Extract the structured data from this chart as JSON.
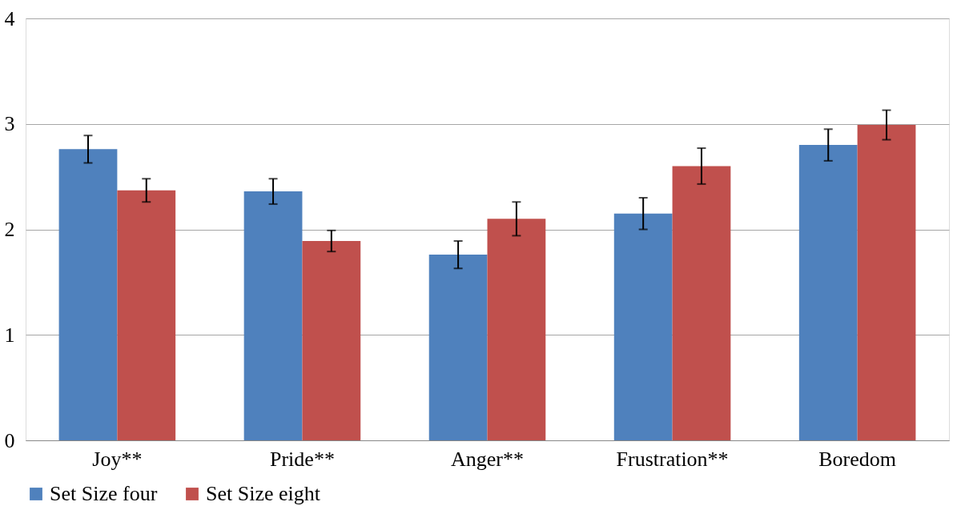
{
  "chart_data": {
    "type": "bar",
    "categories": [
      "Joy**",
      "Pride**",
      "Anger**",
      "Frustration**",
      "Boredom"
    ],
    "series": [
      {
        "name": "Set Size four",
        "color": "#4f81bd",
        "values": [
          2.76,
          2.36,
          1.76,
          2.15,
          2.8
        ],
        "errors": [
          0.13,
          0.12,
          0.13,
          0.15,
          0.15
        ]
      },
      {
        "name": "Set Size eight",
        "color": "#c0504d",
        "values": [
          2.37,
          1.89,
          2.1,
          2.6,
          2.99
        ],
        "errors": [
          0.11,
          0.1,
          0.16,
          0.17,
          0.14
        ]
      }
    ],
    "ylim": [
      0,
      4
    ],
    "yticks": [
      0,
      1,
      2,
      3,
      4
    ],
    "grid": "y",
    "legend": "bottom"
  }
}
